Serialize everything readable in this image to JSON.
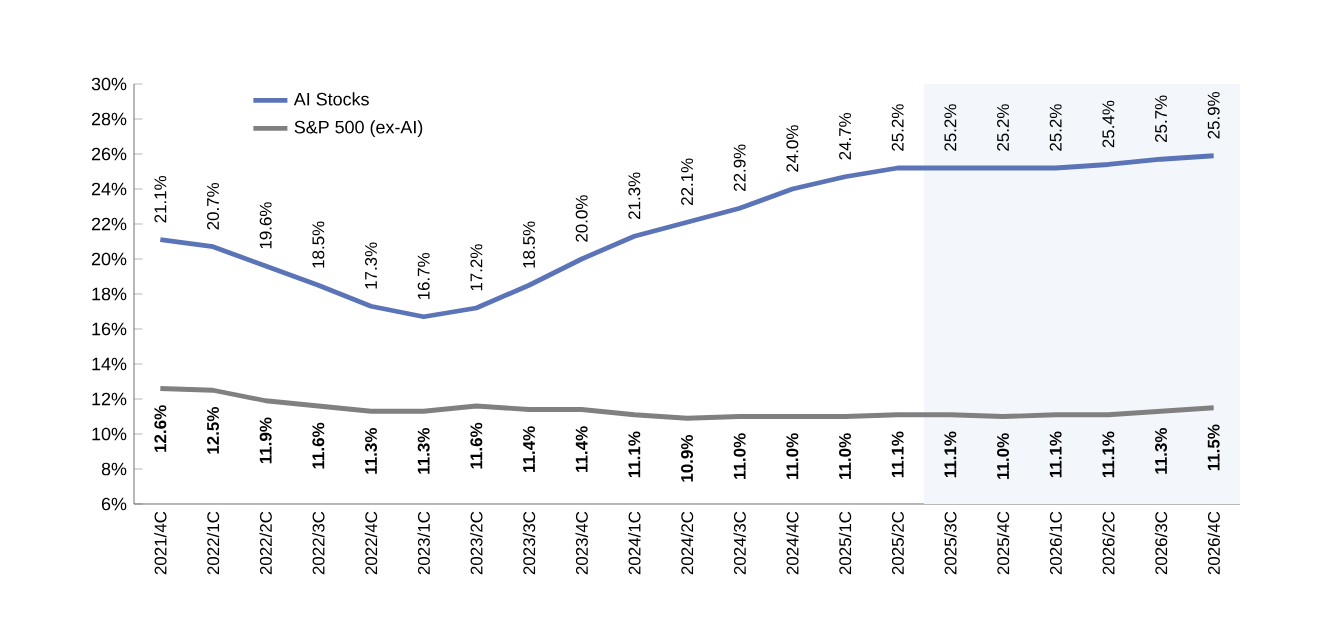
{
  "chart_data": {
    "type": "line",
    "categories": [
      "2021/4C",
      "2022/1C",
      "2022/2C",
      "2022/3C",
      "2022/4C",
      "2023/1C",
      "2023/2C",
      "2023/3C",
      "2023/4C",
      "2024/1C",
      "2024/2C",
      "2024/3C",
      "2024/4C",
      "2025/1C",
      "2025/2C",
      "2025/3C",
      "2025/4C",
      "2026/1C",
      "2026/2C",
      "2026/3C",
      "2026/4C"
    ],
    "series": [
      {
        "name": "AI Stocks",
        "color": "#5b74b8",
        "values": [
          21.1,
          20.7,
          19.6,
          18.5,
          17.3,
          16.7,
          17.2,
          18.5,
          20.0,
          21.3,
          22.1,
          22.9,
          24.0,
          24.7,
          25.2,
          25.2,
          25.2,
          25.2,
          25.4,
          25.7,
          25.9
        ],
        "value_labels": [
          "21.1%",
          "20.7%",
          "19.6%",
          "18.5%",
          "17.3%",
          "16.7%",
          "17.2%",
          "18.5%",
          "20.0%",
          "21.3%",
          "22.1%",
          "22.9%",
          "24.0%",
          "24.7%",
          "25.2%",
          "25.2%",
          "25.2%",
          "25.2%",
          "25.4%",
          "25.7%",
          "25.9%"
        ]
      },
      {
        "name": "S&P 500 (ex-AI)",
        "color": "#808080",
        "values": [
          12.6,
          12.5,
          11.9,
          11.6,
          11.3,
          11.3,
          11.6,
          11.4,
          11.4,
          11.1,
          10.9,
          11.0,
          11.0,
          11.0,
          11.1,
          11.1,
          11.0,
          11.1,
          11.1,
          11.3,
          11.5
        ],
        "value_labels": [
          "12.6%",
          "12.5%",
          "11.9%",
          "11.6%",
          "11.3%",
          "11.3%",
          "11.6%",
          "11.4%",
          "11.4%",
          "11.1%",
          "10.9%",
          "11.0%",
          "11.0%",
          "11.0%",
          "11.1%",
          "11.1%",
          "11.0%",
          "11.1%",
          "11.1%",
          "11.3%",
          "11.5%"
        ]
      }
    ],
    "ylim": [
      6,
      30
    ],
    "yticks": [
      {
        "value": 6,
        "label": "6%"
      },
      {
        "value": 8,
        "label": "8%"
      },
      {
        "value": 10,
        "label": "10%"
      },
      {
        "value": 12,
        "label": "12%"
      },
      {
        "value": 14,
        "label": "14%"
      },
      {
        "value": 16,
        "label": "16%"
      },
      {
        "value": 18,
        "label": "18%"
      },
      {
        "value": 20,
        "label": "20%"
      },
      {
        "value": 22,
        "label": "22%"
      },
      {
        "value": 24,
        "label": "24%"
      },
      {
        "value": 26,
        "label": "26%"
      },
      {
        "value": 28,
        "label": "28%"
      },
      {
        "value": 30,
        "label": "30%"
      }
    ],
    "bands": [
      {
        "axis": "x",
        "from": "2025/3C",
        "to": "2026/4C",
        "color": "#f3f7fb"
      }
    ],
    "legend": "top left",
    "grid": false,
    "marker": "none",
    "line_style": "solid"
  }
}
